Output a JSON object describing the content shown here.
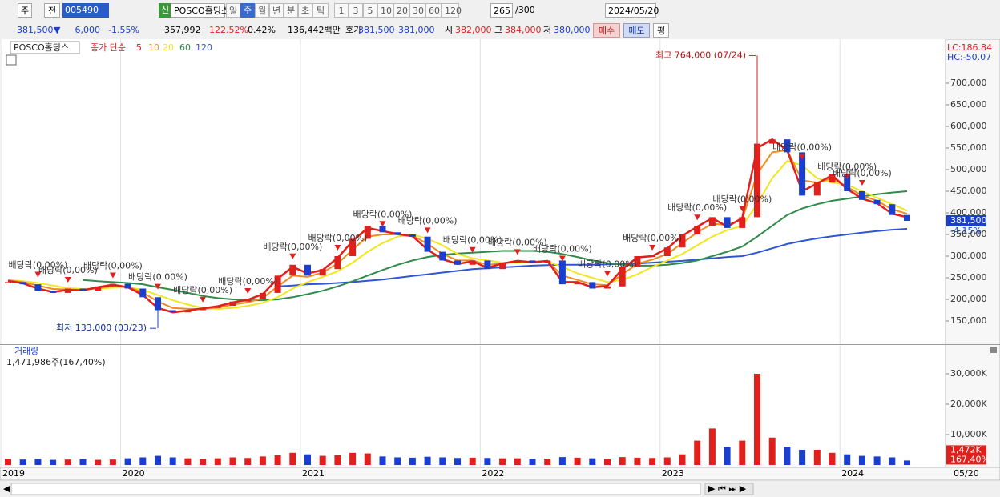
{
  "toolbar": {
    "row1": [
      "주",
      "전",
      "005490",
      "신",
      "POSCO홀딩스",
      "일",
      "주",
      "월",
      "년",
      "분",
      "초",
      "틱",
      "1",
      "3",
      "5",
      "10",
      "20",
      "30",
      "60",
      "120",
      "265",
      "/300",
      "2024/05/20"
    ],
    "row2": [
      "381,500",
      "▼",
      "6,000",
      "-1.55%",
      "357,992",
      "122.52%",
      "0.42%",
      "136,442백만",
      "호가",
      "381,500",
      "381,000",
      "시",
      "382,000",
      "고",
      "384,000",
      "저",
      "380,000",
      "매수",
      "매도",
      "평"
    ]
  },
  "chart_data": [
    {
      "type": "candlestick",
      "title": "POSCO홀딩스",
      "indicator": "종가 단순",
      "up_color": "#e0201c",
      "down_color": "#1a3fd0",
      "values": [
        240000,
        235000,
        220000,
        215000,
        225000,
        220000,
        230000,
        236000,
        225000,
        205000,
        175000,
        170000,
        175000,
        180000,
        185000,
        195000,
        200000,
        215000,
        255000,
        280000,
        255000,
        270000,
        300000,
        340000,
        370000,
        355000,
        350000,
        345000,
        310000,
        290000,
        280000,
        290000,
        270000,
        285000,
        290000,
        285000,
        290000,
        235000,
        240000,
        225000,
        230000,
        275000,
        300000,
        300000,
        320000,
        350000,
        370000,
        390000,
        365000,
        390000,
        560000,
        570000,
        540000,
        440000,
        470000,
        490000,
        450000,
        430000,
        420000,
        395000,
        381500
      ],
      "series": [
        {
          "name": "5",
          "color": "#e0201c",
          "values": [
            243000,
            237000,
            225000,
            217000,
            222000,
            221000,
            228000,
            234000,
            228000,
            210000,
            180000,
            170000,
            174000,
            179000,
            184000,
            193000,
            199000,
            212000,
            248000,
            275000,
            260000,
            268000,
            296000,
            335000,
            365000,
            358000,
            351000,
            346000,
            315000,
            293000,
            282000,
            288000,
            273000,
            283000,
            289000,
            286000,
            289000,
            240000,
            240000,
            228000,
            231000,
            270000,
            297000,
            300000,
            318000,
            347000,
            368000,
            388000,
            368000,
            388000,
            550000,
            570000,
            545000,
            450000,
            468000,
            487000,
            455000,
            433000,
            422000,
            398000,
            390000
          ]
        },
        {
          "name": "10",
          "color": "#f08c1e",
          "values": [
            244000,
            240000,
            232000,
            224000,
            223000,
            222000,
            226000,
            231000,
            229000,
            216000,
            195000,
            180000,
            178000,
            178000,
            181000,
            188000,
            193000,
            203000,
            230000,
            255000,
            252000,
            262000,
            283000,
            315000,
            345000,
            350000,
            350000,
            348000,
            328000,
            305000,
            290000,
            290000,
            280000,
            283000,
            287000,
            287000,
            288000,
            255000,
            245000,
            235000,
            233000,
            258000,
            282000,
            292000,
            305000,
            330000,
            355000,
            375000,
            372000,
            385000,
            490000,
            540000,
            545000,
            475000,
            470000,
            480000,
            460000,
            440000,
            428000,
            408000,
            398000
          ]
        },
        {
          "name": "20",
          "color": "#f2e61e",
          "values": [
            245000,
            242000,
            238000,
            232000,
            226000,
            224000,
            225000,
            227000,
            228000,
            222000,
            210000,
            198000,
            188000,
            180000,
            178000,
            180000,
            185000,
            192000,
            205000,
            225000,
            240000,
            252000,
            265000,
            285000,
            310000,
            330000,
            345000,
            350000,
            340000,
            325000,
            305000,
            295000,
            290000,
            285000,
            285000,
            287000,
            288000,
            275000,
            260000,
            250000,
            240000,
            245000,
            258000,
            275000,
            290000,
            305000,
            325000,
            345000,
            360000,
            370000,
            420000,
            480000,
            520000,
            510000,
            480000,
            470000,
            465000,
            450000,
            435000,
            420000,
            405000
          ]
        },
        {
          "name": "60",
          "color": "#2e8b4a",
          "values": [
            null,
            null,
            null,
            null,
            null,
            245000,
            242000,
            240000,
            238000,
            235000,
            228000,
            222000,
            215000,
            208000,
            203000,
            200000,
            198000,
            198000,
            200000,
            205000,
            212000,
            220000,
            230000,
            242000,
            255000,
            268000,
            280000,
            290000,
            298000,
            303000,
            306000,
            308000,
            310000,
            312000,
            312000,
            312000,
            310000,
            305000,
            298000,
            290000,
            284000,
            280000,
            278000,
            278000,
            280000,
            284000,
            290000,
            300000,
            310000,
            322000,
            345000,
            370000,
            395000,
            410000,
            420000,
            428000,
            433000,
            438000,
            443000,
            447000,
            450000
          ]
        },
        {
          "name": "120",
          "color": "#2f55d4",
          "values": [
            null,
            null,
            null,
            null,
            null,
            null,
            null,
            null,
            null,
            null,
            null,
            null,
            null,
            null,
            null,
            null,
            null,
            null,
            230000,
            232000,
            235000,
            236000,
            238000,
            240000,
            243000,
            246000,
            250000,
            254000,
            258000,
            262000,
            266000,
            270000,
            272000,
            274000,
            276000,
            278000,
            279000,
            280000,
            280000,
            280000,
            281000,
            282000,
            283000,
            285000,
            287000,
            289000,
            292000,
            295000,
            298000,
            300000,
            308000,
            318000,
            328000,
            335000,
            341000,
            346000,
            350000,
            354000,
            358000,
            361000,
            363000
          ]
        }
      ],
      "ylim": [
        96300,
        790700
      ],
      "yticks": [
        {
          "value": 150000,
          "label": "150,000"
        },
        {
          "value": 200000,
          "label": "200,000"
        },
        {
          "value": 250000,
          "label": "250,000"
        },
        {
          "value": 300000,
          "label": "300,000"
        },
        {
          "value": 350000,
          "label": "350,000"
        },
        {
          "value": 400000,
          "label": "400,000"
        },
        {
          "value": 450000,
          "label": "450,000"
        },
        {
          "value": 500000,
          "label": "500,000"
        },
        {
          "value": 550000,
          "label": "550,000"
        },
        {
          "value": 600000,
          "label": "600,000"
        },
        {
          "value": 650000,
          "label": "650,000"
        },
        {
          "value": 700000,
          "label": "700,000"
        }
      ],
      "lc_label": "LC:186.84",
      "hc_label": "HC:-50.07",
      "last_label": "381,500",
      "last_change": "-4.15%",
      "high": {
        "label": "최고 764,000 (07/24)",
        "value": 764000,
        "index": 50
      },
      "low": {
        "label": "최저 133,000 (03/23)",
        "value": 133000,
        "index": 10
      },
      "dividends": [
        {
          "index": 2,
          "label": "배당락(0,00%)"
        },
        {
          "index": 4,
          "label": "배당락(0,00%)"
        },
        {
          "index": 7,
          "label": "배당락(0,00%)"
        },
        {
          "index": 10,
          "label": "배당락(0,00%)"
        },
        {
          "index": 13,
          "label": "배당락(0,00%)"
        },
        {
          "index": 16,
          "label": "배당락(0,00%)"
        },
        {
          "index": 19,
          "label": "배당락(0,00%)"
        },
        {
          "index": 22,
          "label": "배당락(0,00%)"
        },
        {
          "index": 25,
          "label": "배당락(0,00%)"
        },
        {
          "index": 28,
          "label": "배당락(0,00%)"
        },
        {
          "index": 31,
          "label": "배당락(0,00%)"
        },
        {
          "index": 34,
          "label": "배당락(0,00%)"
        },
        {
          "index": 37,
          "label": "배당락(0,00%)"
        },
        {
          "index": 40,
          "label": "배당락(0,00%)"
        },
        {
          "index": 43,
          "label": "배당락(0,00%)"
        },
        {
          "index": 46,
          "label": "배당락(0,00%)"
        },
        {
          "index": 49,
          "label": "배당락(0,00%)"
        },
        {
          "index": 53,
          "label": "배당락(0,00%)"
        },
        {
          "index": 56,
          "label": "배당락(0,00%)"
        },
        {
          "index": 57,
          "label": "배당락(0,00%)"
        }
      ]
    },
    {
      "type": "bar",
      "title": "거래량",
      "subtitle": "1,471,986주(167,40%)",
      "categories": [
        "2019",
        null,
        null,
        null,
        null,
        null,
        null,
        null,
        "2020",
        null,
        null,
        null,
        null,
        null,
        null,
        null,
        null,
        null,
        null,
        null,
        "2021",
        null,
        null,
        null,
        null,
        null,
        null,
        null,
        null,
        null,
        null,
        null,
        "2022",
        null,
        null,
        null,
        null,
        null,
        null,
        null,
        null,
        null,
        null,
        null,
        "2023",
        null,
        null,
        null,
        null,
        null,
        null,
        null,
        null,
        null,
        null,
        null,
        "2024",
        null,
        null,
        null,
        "05/20"
      ],
      "values": [
        2000000,
        1800000,
        2000000,
        1700000,
        1800000,
        1900000,
        1700000,
        1800000,
        2200000,
        2500000,
        3000000,
        2500000,
        2200000,
        2000000,
        2200000,
        2500000,
        2300000,
        2800000,
        3200000,
        4000000,
        3500000,
        3000000,
        3200000,
        4000000,
        3800000,
        2800000,
        2500000,
        2400000,
        2700000,
        2500000,
        2300000,
        2400000,
        2300000,
        2200000,
        2200000,
        2000000,
        2100000,
        2600000,
        2400000,
        2200000,
        2100000,
        2600000,
        2400000,
        2300000,
        2500000,
        3500000,
        8000000,
        12000000,
        6000000,
        8000000,
        30000000,
        9000000,
        6000000,
        5000000,
        5000000,
        4000000,
        3500000,
        3000000,
        2800000,
        2500000,
        1472000
      ],
      "ylim": [
        0,
        37100000
      ],
      "yticks": [
        {
          "value": 10000000,
          "label": "10,000K"
        },
        {
          "value": 20000000,
          "label": "20,000K"
        },
        {
          "value": 30000000,
          "label": "30,000K"
        }
      ],
      "last_label": "1,472K",
      "last_ratio": "167,40%"
    }
  ]
}
